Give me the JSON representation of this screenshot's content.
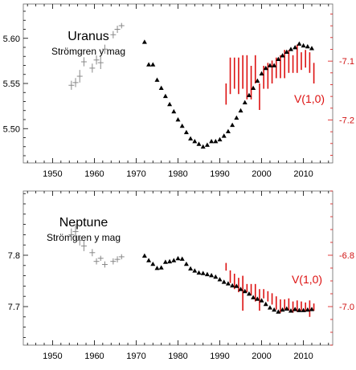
{
  "colors": {
    "triangle": "#000000",
    "cross": "#888888",
    "red": "#dd1111"
  },
  "chart_data": [
    {
      "type": "scatter",
      "title": "Uranus",
      "subtitle": "Strömgren y mag",
      "right_label": "V(1,0)",
      "xlim": [
        1943,
        2017
      ],
      "ylim": [
        5.638,
        5.462
      ],
      "y2lim": [
        -7.003,
        -7.273
      ],
      "xticks": [
        1950,
        1960,
        1970,
        1980,
        1990,
        2000,
        2010
      ],
      "yticks": [
        5.5,
        5.55,
        5.6
      ],
      "ytick_labels": [
        "5.50",
        "5.55",
        "5.60"
      ],
      "y2ticks": [
        -7.2,
        -7.1
      ],
      "y2tick_labels": [
        "-7.2",
        "-7.1"
      ],
      "crosses": [
        {
          "x": 1954.5,
          "y": 5.548,
          "e": 0.005
        },
        {
          "x": 1955.5,
          "y": 5.551,
          "e": 0.005
        },
        {
          "x": 1956.5,
          "y": 5.558,
          "e": 0.007
        },
        {
          "x": 1957.5,
          "y": 5.574,
          "e": 0.005
        },
        {
          "x": 1959.5,
          "y": 5.567,
          "e": 0.005
        },
        {
          "x": 1960.5,
          "y": 5.576,
          "e": 0.005
        },
        {
          "x": 1961.5,
          "y": 5.573,
          "e": 0.007
        },
        {
          "x": 1962.5,
          "y": 5.588,
          "e": 0.005
        },
        {
          "x": 1964.5,
          "y": 5.604,
          "e": 0.004
        },
        {
          "x": 1965.5,
          "y": 5.61,
          "e": 0.004
        },
        {
          "x": 1966.5,
          "y": 5.614,
          "e": 0.003
        }
      ],
      "triangles": [
        {
          "x": 1972,
          "y": 5.596
        },
        {
          "x": 1973,
          "y": 5.571
        },
        {
          "x": 1974,
          "y": 5.571
        },
        {
          "x": 1975,
          "y": 5.554
        },
        {
          "x": 1976,
          "y": 5.545
        },
        {
          "x": 1977,
          "y": 5.536
        },
        {
          "x": 1978,
          "y": 5.527
        },
        {
          "x": 1979,
          "y": 5.519
        },
        {
          "x": 1980,
          "y": 5.51
        },
        {
          "x": 1981,
          "y": 5.503
        },
        {
          "x": 1982,
          "y": 5.496
        },
        {
          "x": 1983,
          "y": 5.489
        },
        {
          "x": 1984,
          "y": 5.486
        },
        {
          "x": 1985,
          "y": 5.483
        },
        {
          "x": 1986,
          "y": 5.48
        },
        {
          "x": 1987,
          "y": 5.482
        },
        {
          "x": 1988,
          "y": 5.486
        },
        {
          "x": 1989,
          "y": 5.486
        },
        {
          "x": 1990,
          "y": 5.488
        },
        {
          "x": 1991,
          "y": 5.492
        },
        {
          "x": 1992,
          "y": 5.497
        },
        {
          "x": 1993,
          "y": 5.504
        },
        {
          "x": 1994,
          "y": 5.512
        },
        {
          "x": 1995,
          "y": 5.52
        },
        {
          "x": 1996,
          "y": 5.529
        },
        {
          "x": 1997,
          "y": 5.537
        },
        {
          "x": 1998,
          "y": 5.545
        },
        {
          "x": 1999,
          "y": 5.553
        },
        {
          "x": 2000,
          "y": 5.561
        },
        {
          "x": 2001,
          "y": 5.567
        },
        {
          "x": 2002,
          "y": 5.57
        },
        {
          "x": 2003,
          "y": 5.57
        },
        {
          "x": 2004,
          "y": 5.577
        },
        {
          "x": 2005,
          "y": 5.581
        },
        {
          "x": 2006,
          "y": 5.585
        },
        {
          "x": 2007,
          "y": 5.588
        },
        {
          "x": 2008,
          "y": 5.59
        },
        {
          "x": 2009,
          "y": 5.594
        },
        {
          "x": 2010,
          "y": 5.592
        },
        {
          "x": 2011,
          "y": 5.591
        },
        {
          "x": 2012,
          "y": 5.589
        }
      ],
      "red_bars": [
        {
          "x": 1991.5,
          "lo": -7.174,
          "hi": -7.138
        },
        {
          "x": 1992.5,
          "lo": -7.156,
          "hi": -7.094
        },
        {
          "x": 1993.5,
          "lo": -7.147,
          "hi": -7.094
        },
        {
          "x": 1994.5,
          "lo": -7.156,
          "hi": -7.094
        },
        {
          "x": 1995.5,
          "lo": -7.147,
          "hi": -7.09
        },
        {
          "x": 1996.5,
          "lo": -7.165,
          "hi": -7.09
        },
        {
          "x": 1997.5,
          "lo": -7.165,
          "hi": -7.108
        },
        {
          "x": 1998.5,
          "lo": -7.138,
          "hi": -7.09
        },
        {
          "x": 1999.5,
          "lo": -7.183,
          "hi": -7.138
        },
        {
          "x": 2000.5,
          "lo": -7.147,
          "hi": -7.108
        },
        {
          "x": 2001.5,
          "lo": -7.147,
          "hi": -7.103
        },
        {
          "x": 2002.5,
          "lo": -7.138,
          "hi": -7.099
        },
        {
          "x": 2003.5,
          "lo": -7.129,
          "hi": -7.094
        },
        {
          "x": 2004.5,
          "lo": -7.129,
          "hi": -7.09
        },
        {
          "x": 2005.5,
          "lo": -7.129,
          "hi": -7.081
        },
        {
          "x": 2006.5,
          "lo": -7.12,
          "hi": -7.081
        },
        {
          "x": 2007.5,
          "lo": -7.12,
          "hi": -7.09
        },
        {
          "x": 2008.5,
          "lo": -7.12,
          "hi": -7.072
        },
        {
          "x": 2009.5,
          "lo": -7.115,
          "hi": -7.085
        },
        {
          "x": 2010.5,
          "lo": -7.111,
          "hi": -7.081
        },
        {
          "x": 2011.5,
          "lo": -7.12,
          "hi": -7.085
        },
        {
          "x": 2012.5,
          "lo": -7.138,
          "hi": -7.103
        }
      ]
    },
    {
      "type": "scatter",
      "title": "Neptune",
      "subtitle": "Strömgren y mag",
      "right_label": "V(1,0)",
      "xlim": [
        1943,
        2017
      ],
      "ylim": [
        7.925,
        7.625
      ],
      "y2lim": [
        -6.55,
        -7.15
      ],
      "xticks": [
        1950,
        1960,
        1970,
        1980,
        1990,
        2000,
        2010
      ],
      "yticks": [
        7.7,
        7.8
      ],
      "ytick_labels": [
        "7.7",
        "7.8"
      ],
      "y2ticks": [
        -7.0,
        -6.8
      ],
      "y2tick_labels": [
        "-7.0",
        "-6.8"
      ],
      "crosses": [
        {
          "x": 1954.5,
          "y": 7.84,
          "e": 0.012
        },
        {
          "x": 1955.5,
          "y": 7.846,
          "e": 0.015
        },
        {
          "x": 1956.5,
          "y": 7.829,
          "e": 0.01
        },
        {
          "x": 1957.5,
          "y": 7.818,
          "e": 0.01
        },
        {
          "x": 1959.5,
          "y": 7.805,
          "e": 0.007
        },
        {
          "x": 1960.5,
          "y": 7.788,
          "e": 0.006
        },
        {
          "x": 1961.5,
          "y": 7.794,
          "e": 0.005
        },
        {
          "x": 1962.5,
          "y": 7.782,
          "e": 0.006
        },
        {
          "x": 1964.5,
          "y": 7.788,
          "e": 0.006
        },
        {
          "x": 1965.5,
          "y": 7.792,
          "e": 0.006
        },
        {
          "x": 1966.5,
          "y": 7.797,
          "e": 0.005
        }
      ],
      "triangles": [
        {
          "x": 1972,
          "y": 7.799
        },
        {
          "x": 1973,
          "y": 7.79
        },
        {
          "x": 1974,
          "y": 7.783
        },
        {
          "x": 1975,
          "y": 7.775
        },
        {
          "x": 1976,
          "y": 7.776
        },
        {
          "x": 1977,
          "y": 7.787
        },
        {
          "x": 1978,
          "y": 7.788
        },
        {
          "x": 1979,
          "y": 7.79
        },
        {
          "x": 1980,
          "y": 7.794
        },
        {
          "x": 1981,
          "y": 7.793
        },
        {
          "x": 1982,
          "y": 7.783
        },
        {
          "x": 1983,
          "y": 7.774
        },
        {
          "x": 1984,
          "y": 7.77
        },
        {
          "x": 1985,
          "y": 7.766
        },
        {
          "x": 1986,
          "y": 7.765
        },
        {
          "x": 1987,
          "y": 7.763
        },
        {
          "x": 1988,
          "y": 7.761
        },
        {
          "x": 1989,
          "y": 7.758
        },
        {
          "x": 1990,
          "y": 7.753
        },
        {
          "x": 1991,
          "y": 7.748
        },
        {
          "x": 1992,
          "y": 7.745
        },
        {
          "x": 1993,
          "y": 7.741
        },
        {
          "x": 1994,
          "y": 7.74
        },
        {
          "x": 1995,
          "y": 7.734
        },
        {
          "x": 1996,
          "y": 7.73
        },
        {
          "x": 1997,
          "y": 7.725
        },
        {
          "x": 1998,
          "y": 7.718
        },
        {
          "x": 1999,
          "y": 7.715
        },
        {
          "x": 2000,
          "y": 7.712
        },
        {
          "x": 2001,
          "y": 7.705
        },
        {
          "x": 2002,
          "y": 7.698
        },
        {
          "x": 2003,
          "y": 7.694
        },
        {
          "x": 2004,
          "y": 7.69
        },
        {
          "x": 2005,
          "y": 7.694
        },
        {
          "x": 2006,
          "y": 7.696
        },
        {
          "x": 2007,
          "y": 7.692
        },
        {
          "x": 2008,
          "y": 7.695
        },
        {
          "x": 2009,
          "y": 7.693
        },
        {
          "x": 2010,
          "y": 7.693
        },
        {
          "x": 2011,
          "y": 7.694
        },
        {
          "x": 2012,
          "y": 7.695
        }
      ],
      "red_bars": [
        {
          "x": 1991.5,
          "lo": -6.86,
          "hi": -6.83
        },
        {
          "x": 1992.5,
          "lo": -6.908,
          "hi": -6.859
        },
        {
          "x": 1993.5,
          "lo": -6.932,
          "hi": -6.872
        },
        {
          "x": 1994.5,
          "lo": -6.944,
          "hi": -6.888
        },
        {
          "x": 1995.5,
          "lo": -7.016,
          "hi": -6.88
        },
        {
          "x": 1996.5,
          "lo": -6.944,
          "hi": -6.912
        },
        {
          "x": 1997.5,
          "lo": -6.956,
          "hi": -6.912
        },
        {
          "x": 1998.5,
          "lo": -6.98,
          "hi": -6.912
        },
        {
          "x": 1999.5,
          "lo": -7.016,
          "hi": -6.932
        },
        {
          "x": 2000.5,
          "lo": -6.968,
          "hi": -6.932
        },
        {
          "x": 2001.5,
          "lo": -6.98,
          "hi": -6.94
        },
        {
          "x": 2002.5,
          "lo": -6.992,
          "hi": -6.948
        },
        {
          "x": 2003.5,
          "lo": -7.012,
          "hi": -6.96
        },
        {
          "x": 2004.5,
          "lo": -7.024,
          "hi": -6.972
        },
        {
          "x": 2005.5,
          "lo": -7.012,
          "hi": -6.972
        },
        {
          "x": 2006.5,
          "lo": -7.016,
          "hi": -6.968
        },
        {
          "x": 2007.5,
          "lo": -7.024,
          "hi": -6.98
        },
        {
          "x": 2008.5,
          "lo": -7.02,
          "hi": -6.976
        },
        {
          "x": 2009.5,
          "lo": -7.016,
          "hi": -6.98
        },
        {
          "x": 2010.5,
          "lo": -7.02,
          "hi": -6.984
        },
        {
          "x": 2011.5,
          "lo": -7.04,
          "hi": -6.976
        },
        {
          "x": 2012.5,
          "lo": -7.016,
          "hi": -6.988
        }
      ]
    }
  ]
}
